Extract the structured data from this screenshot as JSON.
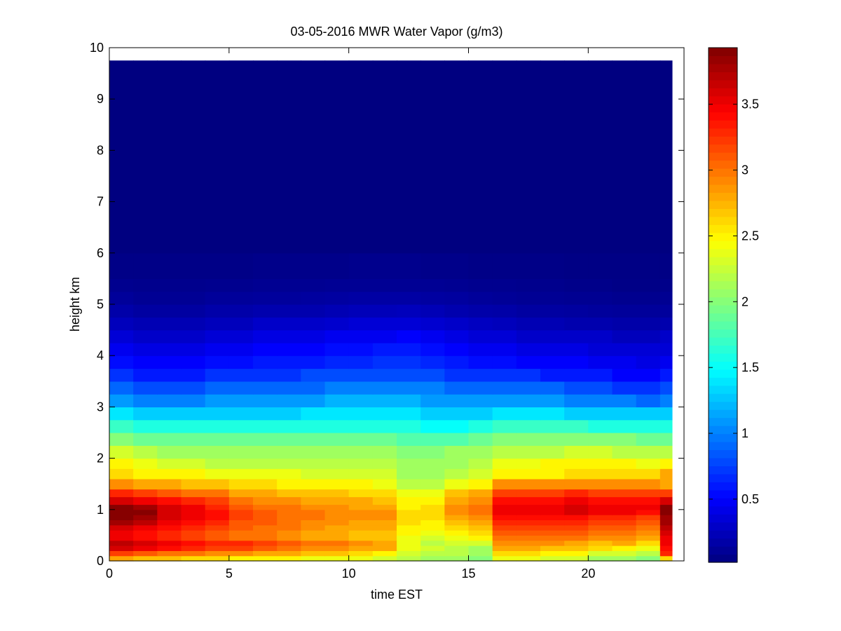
{
  "chart_data": {
    "type": "heatmap",
    "title": "03-05-2016 MWR Water Vapor (g/m3)",
    "xlabel": "time EST",
    "ylabel": "height km",
    "xlim": [
      0,
      24
    ],
    "ylim": [
      0,
      10
    ],
    "xticks": [
      0,
      5,
      10,
      15,
      20
    ],
    "yticks": [
      0,
      1,
      2,
      3,
      4,
      5,
      6,
      7,
      8,
      9,
      10
    ],
    "colorbar": {
      "colormap": "jet",
      "range": [
        0.02,
        3.93
      ],
      "ticks": [
        0.5,
        1,
        1.5,
        2,
        2.5,
        3,
        3.5
      ],
      "tick_labels": [
        "0.5",
        "1",
        "1.5",
        "2",
        "2.5",
        "3",
        "3.5"
      ]
    },
    "x_edges": [
      0,
      1,
      2,
      3,
      4,
      5,
      6,
      7,
      8,
      9,
      10,
      11,
      12,
      13,
      14,
      15,
      16,
      17,
      18,
      19,
      20,
      21,
      22,
      23,
      23.5
    ],
    "y_edges": [
      0,
      0.1,
      0.2,
      0.3,
      0.4,
      0.5,
      0.6,
      0.7,
      0.8,
      0.9,
      1.0,
      1.1,
      1.25,
      1.4,
      1.6,
      1.8,
      2.0,
      2.25,
      2.5,
      2.75,
      3.0,
      3.25,
      3.5,
      3.75,
      4.0,
      4.25,
      4.5,
      4.75,
      5.0,
      5.25,
      5.5,
      6.0,
      9.75
    ],
    "values_units": "g/m3",
    "values": [
      [
        2.8,
        2.7,
        2.7,
        2.6,
        2.6,
        2.5,
        2.5,
        2.5,
        2.4,
        2.4,
        2.4,
        2.3,
        2.2,
        2.1,
        2.1,
        2.0,
        2.4,
        2.4,
        2.3,
        2.3,
        2.1,
        2.1,
        2.0,
        2.6
      ],
      [
        3.2,
        3.1,
        3.0,
        3.0,
        2.9,
        2.9,
        2.8,
        2.8,
        2.7,
        2.7,
        2.6,
        2.5,
        2.3,
        2.2,
        2.2,
        2.1,
        2.6,
        2.6,
        2.5,
        2.5,
        2.3,
        2.3,
        2.2,
        3.3
      ],
      [
        3.6,
        3.5,
        3.4,
        3.3,
        3.2,
        3.2,
        3.1,
        3.0,
        2.9,
        2.9,
        2.8,
        2.8,
        2.4,
        2.3,
        2.2,
        2.1,
        2.8,
        2.8,
        2.7,
        2.7,
        2.6,
        2.5,
        2.4,
        3.4
      ],
      [
        3.7,
        3.6,
        3.5,
        3.4,
        3.3,
        3.3,
        3.2,
        3.1,
        3.0,
        3.0,
        2.9,
        2.8,
        2.4,
        2.2,
        2.3,
        2.3,
        2.9,
        2.9,
        2.9,
        2.8,
        2.7,
        2.8,
        2.6,
        3.5
      ],
      [
        3.5,
        3.4,
        3.3,
        3.2,
        3.1,
        3.0,
        3.0,
        2.9,
        2.8,
        2.8,
        2.7,
        2.7,
        2.4,
        2.3,
        2.4,
        2.5,
        3.0,
        3.0,
        3.0,
        3.0,
        2.9,
        2.9,
        2.8,
        3.5
      ],
      [
        3.5,
        3.4,
        3.3,
        3.2,
        3.1,
        3.0,
        3.0,
        2.9,
        2.8,
        2.8,
        2.7,
        2.7,
        2.5,
        2.4,
        2.5,
        2.6,
        3.1,
        3.1,
        3.1,
        3.1,
        3.0,
        3.0,
        2.9,
        3.6
      ],
      [
        3.6,
        3.5,
        3.4,
        3.3,
        3.2,
        3.1,
        3.0,
        3.0,
        2.9,
        2.8,
        2.8,
        2.8,
        2.5,
        2.5,
        2.6,
        2.7,
        3.2,
        3.2,
        3.2,
        3.2,
        3.1,
        3.1,
        3.0,
        3.7
      ],
      [
        3.8,
        3.7,
        3.5,
        3.4,
        3.3,
        3.1,
        3.1,
        3.0,
        2.9,
        2.9,
        2.8,
        2.8,
        2.6,
        2.5,
        2.7,
        2.8,
        3.3,
        3.3,
        3.3,
        3.3,
        3.2,
        3.2,
        3.1,
        3.8
      ],
      [
        3.9,
        3.8,
        3.6,
        3.5,
        3.4,
        3.2,
        3.1,
        3.0,
        3.0,
        2.9,
        2.9,
        2.9,
        2.6,
        2.6,
        2.8,
        2.9,
        3.4,
        3.4,
        3.4,
        3.4,
        3.3,
        3.3,
        3.2,
        3.8
      ],
      [
        3.9,
        3.9,
        3.6,
        3.5,
        3.4,
        3.2,
        3.1,
        3.0,
        3.0,
        2.9,
        2.9,
        2.9,
        2.6,
        2.6,
        2.9,
        3.0,
        3.5,
        3.5,
        3.5,
        3.6,
        3.5,
        3.5,
        3.4,
        3.9
      ],
      [
        3.9,
        3.8,
        3.6,
        3.5,
        3.3,
        3.1,
        3.0,
        3.0,
        2.9,
        2.9,
        2.8,
        2.8,
        2.5,
        2.6,
        2.9,
        3.0,
        3.5,
        3.5,
        3.5,
        3.6,
        3.5,
        3.5,
        3.5,
        3.9
      ],
      [
        3.6,
        3.5,
        3.4,
        3.3,
        3.2,
        3.0,
        2.9,
        2.9,
        2.8,
        2.8,
        2.8,
        2.7,
        2.5,
        2.5,
        2.8,
        2.9,
        3.4,
        3.4,
        3.4,
        3.5,
        3.4,
        3.4,
        3.4,
        3.6
      ],
      [
        3.3,
        3.2,
        3.1,
        3.0,
        3.0,
        2.8,
        2.8,
        2.7,
        2.7,
        2.7,
        2.6,
        2.6,
        2.4,
        2.4,
        2.7,
        2.8,
        3.2,
        3.2,
        3.2,
        3.3,
        3.2,
        3.2,
        3.2,
        3.2
      ],
      [
        2.9,
        2.8,
        2.8,
        2.7,
        2.7,
        2.6,
        2.6,
        2.5,
        2.5,
        2.5,
        2.5,
        2.4,
        2.2,
        2.2,
        2.4,
        2.5,
        2.9,
        2.9,
        2.9,
        2.9,
        2.9,
        2.9,
        2.9,
        2.8
      ],
      [
        2.6,
        2.5,
        2.5,
        2.5,
        2.4,
        2.4,
        2.4,
        2.4,
        2.3,
        2.3,
        2.3,
        2.3,
        2.1,
        2.1,
        2.2,
        2.3,
        2.5,
        2.5,
        2.5,
        2.6,
        2.6,
        2.6,
        2.6,
        2.8
      ],
      [
        2.5,
        2.4,
        2.3,
        2.3,
        2.2,
        2.2,
        2.2,
        2.2,
        2.2,
        2.2,
        2.2,
        2.2,
        2.1,
        2.1,
        2.1,
        2.2,
        2.4,
        2.4,
        2.5,
        2.5,
        2.5,
        2.5,
        2.4,
        2.5
      ],
      [
        2.3,
        2.2,
        2.1,
        2.1,
        2.1,
        2.1,
        2.1,
        2.1,
        2.1,
        2.1,
        2.1,
        2.1,
        2.0,
        2.0,
        2.1,
        2.1,
        2.2,
        2.2,
        2.2,
        2.3,
        2.3,
        2.2,
        2.2,
        2.2
      ],
      [
        2.0,
        1.9,
        1.9,
        1.9,
        1.9,
        1.9,
        1.9,
        1.9,
        1.9,
        1.9,
        1.9,
        1.9,
        1.8,
        1.8,
        1.8,
        1.9,
        2.0,
        2.0,
        2.0,
        2.0,
        2.0,
        2.0,
        1.9,
        1.9
      ],
      [
        1.7,
        1.6,
        1.6,
        1.6,
        1.6,
        1.6,
        1.6,
        1.6,
        1.6,
        1.6,
        1.6,
        1.6,
        1.6,
        1.5,
        1.5,
        1.6,
        1.7,
        1.7,
        1.7,
        1.7,
        1.6,
        1.6,
        1.6,
        1.6
      ],
      [
        1.4,
        1.3,
        1.3,
        1.3,
        1.3,
        1.3,
        1.3,
        1.3,
        1.4,
        1.4,
        1.4,
        1.4,
        1.4,
        1.3,
        1.3,
        1.3,
        1.4,
        1.4,
        1.4,
        1.3,
        1.3,
        1.3,
        1.3,
        1.3
      ],
      [
        1.1,
        1.0,
        1.0,
        1.0,
        1.1,
        1.1,
        1.1,
        1.1,
        1.1,
        1.2,
        1.2,
        1.2,
        1.2,
        1.1,
        1.1,
        1.1,
        1.1,
        1.1,
        1.1,
        1.0,
        1.0,
        1.0,
        0.9,
        1.0
      ],
      [
        0.9,
        0.8,
        0.8,
        0.8,
        0.9,
        0.9,
        0.9,
        0.9,
        0.9,
        1.0,
        1.0,
        1.0,
        1.0,
        1.0,
        0.9,
        0.9,
        0.9,
        0.9,
        0.9,
        0.8,
        0.8,
        0.7,
        0.7,
        0.8
      ],
      [
        0.7,
        0.6,
        0.6,
        0.6,
        0.7,
        0.7,
        0.7,
        0.7,
        0.8,
        0.8,
        0.8,
        0.8,
        0.8,
        0.8,
        0.7,
        0.7,
        0.7,
        0.7,
        0.6,
        0.6,
        0.6,
        0.5,
        0.5,
        0.6
      ],
      [
        0.55,
        0.5,
        0.5,
        0.5,
        0.55,
        0.55,
        0.6,
        0.6,
        0.6,
        0.65,
        0.65,
        0.7,
        0.7,
        0.65,
        0.6,
        0.55,
        0.55,
        0.5,
        0.5,
        0.5,
        0.45,
        0.45,
        0.4,
        0.45
      ],
      [
        0.45,
        0.4,
        0.4,
        0.4,
        0.45,
        0.45,
        0.5,
        0.5,
        0.5,
        0.55,
        0.55,
        0.6,
        0.6,
        0.55,
        0.5,
        0.45,
        0.45,
        0.4,
        0.4,
        0.4,
        0.35,
        0.35,
        0.35,
        0.35
      ],
      [
        0.35,
        0.3,
        0.3,
        0.3,
        0.35,
        0.35,
        0.4,
        0.4,
        0.4,
        0.45,
        0.45,
        0.45,
        0.5,
        0.45,
        0.4,
        0.35,
        0.35,
        0.3,
        0.3,
        0.3,
        0.3,
        0.25,
        0.25,
        0.3
      ],
      [
        0.25,
        0.22,
        0.22,
        0.22,
        0.25,
        0.25,
        0.3,
        0.3,
        0.3,
        0.32,
        0.35,
        0.35,
        0.35,
        0.33,
        0.3,
        0.27,
        0.25,
        0.22,
        0.22,
        0.2,
        0.2,
        0.18,
        0.18,
        0.2
      ],
      [
        0.18,
        0.15,
        0.15,
        0.15,
        0.18,
        0.18,
        0.2,
        0.2,
        0.2,
        0.22,
        0.24,
        0.24,
        0.25,
        0.23,
        0.2,
        0.18,
        0.17,
        0.15,
        0.15,
        0.14,
        0.13,
        0.12,
        0.12,
        0.13
      ],
      [
        0.12,
        0.1,
        0.1,
        0.1,
        0.12,
        0.12,
        0.13,
        0.13,
        0.14,
        0.15,
        0.16,
        0.16,
        0.16,
        0.15,
        0.14,
        0.12,
        0.11,
        0.1,
        0.1,
        0.09,
        0.09,
        0.08,
        0.08,
        0.09
      ],
      [
        0.08,
        0.07,
        0.07,
        0.07,
        0.08,
        0.08,
        0.09,
        0.09,
        0.09,
        0.1,
        0.1,
        0.1,
        0.1,
        0.1,
        0.09,
        0.08,
        0.08,
        0.07,
        0.07,
        0.06,
        0.06,
        0.05,
        0.05,
        0.06
      ],
      [
        0.05,
        0.05,
        0.05,
        0.05,
        0.05,
        0.05,
        0.06,
        0.06,
        0.06,
        0.06,
        0.07,
        0.07,
        0.07,
        0.06,
        0.06,
        0.05,
        0.05,
        0.05,
        0.05,
        0.04,
        0.04,
        0.04,
        0.04,
        0.04
      ],
      [
        0.02,
        0.02,
        0.02,
        0.02,
        0.02,
        0.02,
        0.02,
        0.02,
        0.02,
        0.02,
        0.02,
        0.02,
        0.02,
        0.02,
        0.02,
        0.02,
        0.02,
        0.02,
        0.02,
        0.02,
        0.02,
        0.02,
        0.02,
        0.02
      ]
    ]
  }
}
